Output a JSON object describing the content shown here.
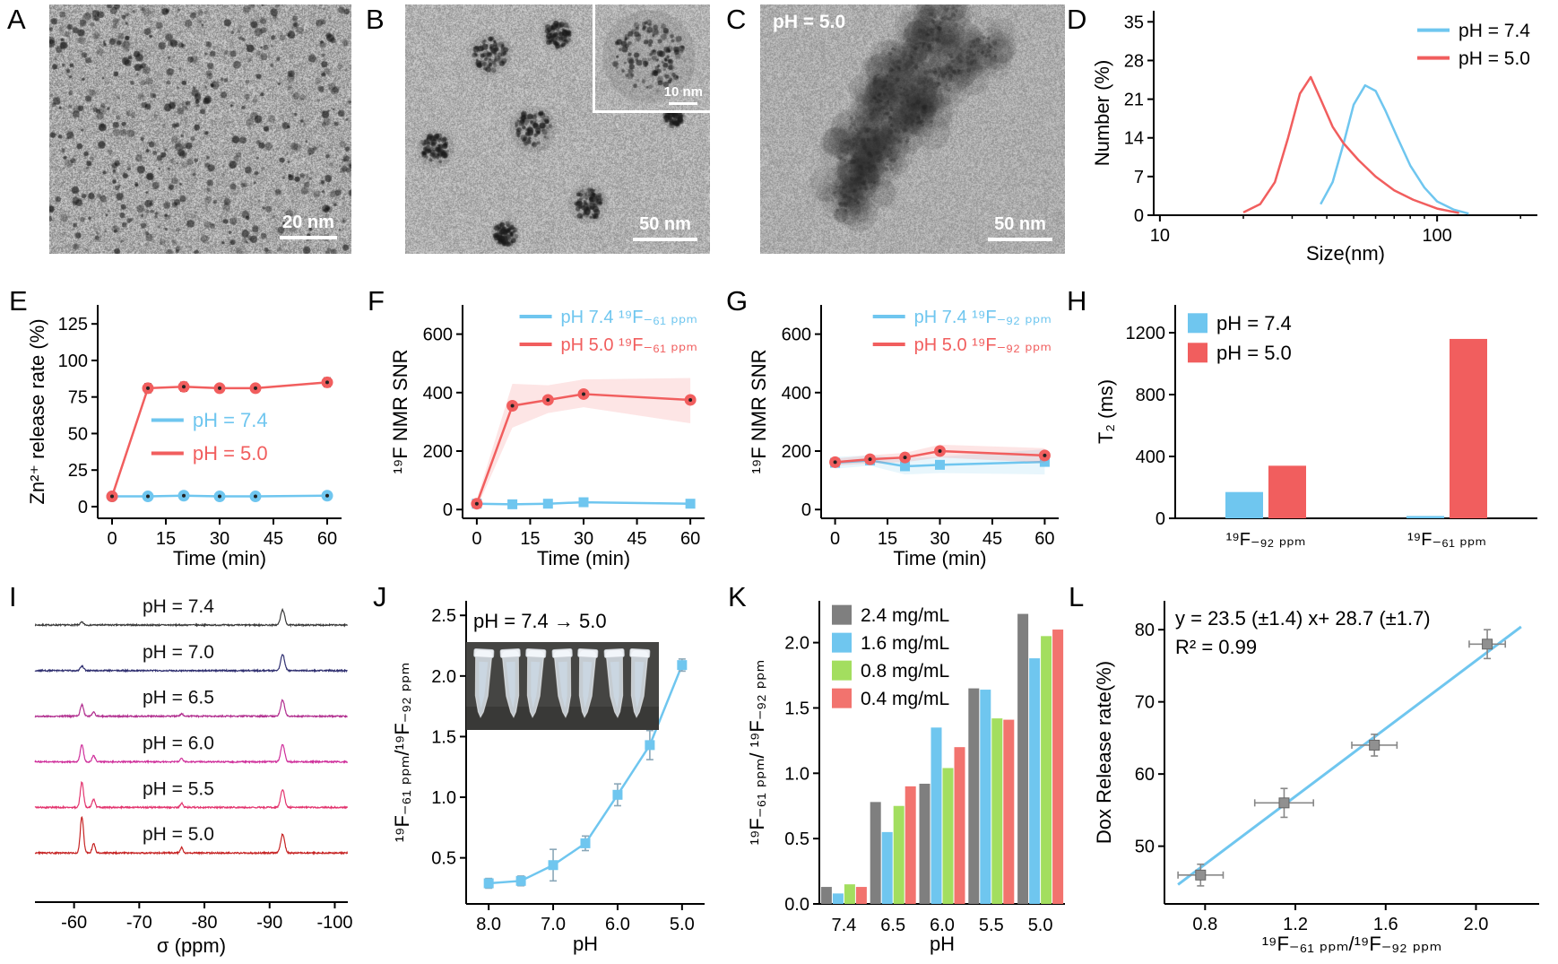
{
  "colors": {
    "blue": "#6FC6EF",
    "red": "#F15E5E",
    "gray": "#7F7F7F",
    "green": "#A3DE5F",
    "bar_red": "#F2736E"
  },
  "panels": {
    "A": {
      "label": "A",
      "scale_bar": "20 nm"
    },
    "B": {
      "label": "B",
      "scale_bar": "50 nm",
      "inset_scale_bar": "10 nm"
    },
    "C": {
      "label": "C",
      "annotation": "pH = 5.0",
      "scale_bar": "50 nm"
    },
    "D": {
      "label": "D"
    },
    "E": {
      "label": "E"
    },
    "F": {
      "label": "F"
    },
    "G": {
      "label": "G"
    },
    "H": {
      "label": "H"
    },
    "I": {
      "label": "I"
    },
    "J": {
      "label": "J"
    },
    "K": {
      "label": "K"
    },
    "L": {
      "label": "L"
    }
  },
  "chart_data": {
    "D": {
      "type": "line",
      "xlabel": "Size(nm)",
      "ylabel": "Number (%)",
      "xscale": "log",
      "xlim": [
        9.5,
        230
      ],
      "ylim": [
        0,
        37
      ],
      "yticks": [
        0,
        7,
        14,
        21,
        28,
        35
      ],
      "xticks": [
        10,
        100
      ],
      "xtick_labels": [
        "10",
        "100"
      ],
      "xminor": [
        20,
        30,
        40,
        50,
        60,
        70,
        80,
        90,
        200
      ],
      "legend": {
        "anchor": "tr",
        "swatch": "line",
        "fontSize": 21,
        "padT": 8,
        "textColored": false,
        "items": [
          {
            "label": "pH = 7.4",
            "color": "#6FC6EF"
          },
          {
            "label": "pH = 5.0",
            "color": "#F15E5E"
          }
        ]
      },
      "series": [
        {
          "name": "pH = 7.4",
          "color": "#6FC6EF",
          "x": [
            38,
            42,
            46,
            50,
            55,
            60,
            65,
            72,
            80,
            90,
            100,
            115,
            130
          ],
          "y": [
            2,
            6,
            13,
            20,
            23.5,
            22.5,
            19,
            14,
            9,
            5,
            2.5,
            1,
            0.3
          ]
        },
        {
          "name": "pH = 5.0",
          "color": "#F15E5E",
          "x": [
            20,
            23,
            26,
            29,
            32,
            35,
            38,
            42,
            46,
            52,
            60,
            70,
            82,
            100,
            120
          ],
          "y": [
            0.5,
            2,
            6,
            14,
            22,
            25,
            21,
            16,
            13,
            10,
            7,
            4.5,
            2.8,
            1.2,
            0.4
          ]
        }
      ]
    },
    "E": {
      "type": "line",
      "xlabel": "Time (min)",
      "ylabel": "Zn²⁺ release rate (%)",
      "xlim": [
        -4,
        64
      ],
      "ylim": [
        -8,
        138
      ],
      "yticks": [
        0,
        25,
        50,
        75,
        100,
        125
      ],
      "xticks": [
        0,
        15,
        30,
        45,
        60
      ],
      "legend": {
        "anchor": "custom",
        "fx": 0.22,
        "fy": 0.48,
        "swatch": "line",
        "fontSize": 22,
        "dy": 37,
        "textColored": true,
        "items": [
          {
            "label": "pH = 7.4",
            "color": "#6FC6EF"
          },
          {
            "label": "pH = 5.0",
            "color": "#F15E5E"
          }
        ]
      },
      "series": [
        {
          "name": "pH = 7.4",
          "color": "#6FC6EF",
          "marker": "circle",
          "err_color": "#222",
          "x": [
            0,
            10,
            20,
            30,
            40,
            60
          ],
          "y": [
            7,
            7,
            7.5,
            7,
            7,
            7.5
          ],
          "yerr": [
            2,
            2,
            2,
            2,
            2,
            2
          ]
        },
        {
          "name": "pH = 5.0",
          "color": "#F15E5E",
          "marker": "circle",
          "err_color": "#222",
          "x": [
            0,
            10,
            20,
            30,
            40,
            60
          ],
          "y": [
            7,
            81,
            82,
            81,
            81,
            85
          ],
          "yerr": [
            2,
            3,
            3,
            2,
            2,
            3
          ]
        }
      ]
    },
    "F": {
      "type": "line",
      "xlabel": "Time (min)",
      "ylabel": "¹⁹F NMR SNR",
      "xlim": [
        -4,
        64
      ],
      "ylim": [
        -30,
        700
      ],
      "yticks": [
        0,
        200,
        400,
        600
      ],
      "xticks": [
        0,
        15,
        30,
        45,
        60
      ],
      "legend": {
        "anchor": "tr",
        "swatch": "line",
        "fontSize": 20,
        "padT": 0,
        "textColored": true,
        "items": [
          {
            "label": "pH 7.4 ¹⁹F₋₆₁ ₚₚₘ",
            "color": "#6FC6EF"
          },
          {
            "label": "pH 5.0 ¹⁹F₋₆₁ ₚₚₘ",
            "color": "#F15E5E"
          }
        ]
      },
      "series": [
        {
          "name": "pH 7.4",
          "color": "#6FC6EF",
          "marker": "square",
          "x": [
            0,
            10,
            20,
            30,
            60
          ],
          "y": [
            20,
            18,
            20,
            25,
            20
          ]
        },
        {
          "name": "pH 5.0",
          "color": "#F15E5E",
          "marker": "circle",
          "x": [
            0,
            10,
            20,
            30,
            60
          ],
          "y": [
            20,
            355,
            375,
            395,
            375
          ],
          "band_lo": [
            5,
            280,
            330,
            350,
            295
          ],
          "band_hi": [
            35,
            430,
            425,
            445,
            450
          ]
        }
      ]
    },
    "G": {
      "type": "line",
      "xlabel": "Time (min)",
      "ylabel": "¹⁹F NMR SNR",
      "xlim": [
        -4,
        64
      ],
      "ylim": [
        -30,
        700
      ],
      "yticks": [
        0,
        200,
        400,
        600
      ],
      "xticks": [
        0,
        15,
        30,
        45,
        60
      ],
      "legend": {
        "anchor": "tr",
        "swatch": "line",
        "fontSize": 20,
        "padT": 0,
        "textColored": true,
        "items": [
          {
            "label": "pH 7.4 ¹⁹F₋₉₂ ₚₚₘ",
            "color": "#6FC6EF"
          },
          {
            "label": "pH 5.0 ¹⁹F₋₉₂ ₚₚₘ",
            "color": "#F15E5E"
          }
        ]
      },
      "series": [
        {
          "name": "pH 7.4",
          "color": "#6FC6EF",
          "marker": "square",
          "x": [
            0,
            10,
            20,
            30,
            60
          ],
          "y": [
            160,
            168,
            148,
            153,
            163
          ],
          "band_lo": [
            140,
            150,
            120,
            125,
            120
          ],
          "band_hi": [
            180,
            186,
            176,
            181,
            206
          ]
        },
        {
          "name": "pH 5.0",
          "color": "#F15E5E",
          "marker": "circle",
          "x": [
            0,
            10,
            20,
            30,
            60
          ],
          "y": [
            162,
            172,
            178,
            200,
            185
          ],
          "band_lo": [
            150,
            158,
            162,
            178,
            160
          ],
          "band_hi": [
            174,
            186,
            194,
            222,
            210
          ]
        }
      ]
    },
    "H": {
      "type": "bar",
      "ylabel": "T₂ (ms)",
      "categories": [
        "¹⁹F₋₉₂ ₚₚₘ",
        "¹⁹F₋₆₁ ₚₚₘ"
      ],
      "ylim": [
        0,
        1380
      ],
      "yticks": [
        0,
        400,
        800,
        1200
      ],
      "legend": {
        "anchor": "tl",
        "swatch": "box",
        "fontSize": 22,
        "padL": 14,
        "padT": 6,
        "dy": 33,
        "textColored": false,
        "items": [
          {
            "label": "pH = 7.4",
            "color": "#6FC6EF"
          },
          {
            "label": "pH = 5.0",
            "color": "#F15E5E"
          }
        ]
      },
      "series": [
        {
          "name": "pH = 7.4",
          "color": "#6FC6EF",
          "values": [
            170,
            15
          ]
        },
        {
          "name": "pH = 5.0",
          "color": "#F15E5E",
          "values": [
            340,
            1160
          ]
        }
      ]
    },
    "I": {
      "type": "spectra",
      "xlabel": "σ (ppm)",
      "xlim": [
        -54,
        -102
      ],
      "xticks": [
        -60,
        -70,
        -80,
        -90,
        -100
      ],
      "xtick_labels": [
        "-60",
        "-70",
        "-80",
        "-90",
        "-100"
      ],
      "traces": [
        {
          "label": "pH = 7.4",
          "color": "#3a3a3a",
          "peaks": [
            [
              -61.2,
              3,
              0.25
            ],
            [
              -92,
              17,
              0.3
            ]
          ]
        },
        {
          "label": "pH = 7.0",
          "color": "#2f2f70",
          "peaks": [
            [
              -61.2,
              5,
              0.25
            ],
            [
              -92,
              18,
              0.3
            ]
          ]
        },
        {
          "label": "pH = 6.5",
          "color": "#b23090",
          "peaks": [
            [
              -61.2,
              13,
              0.25
            ],
            [
              -63,
              5,
              0.22
            ],
            [
              -76.5,
              3,
              0.2
            ],
            [
              -92,
              18,
              0.3
            ]
          ]
        },
        {
          "label": "pH = 6.0",
          "color": "#cf2f9b",
          "peaks": [
            [
              -61.2,
              19,
              0.25
            ],
            [
              -63,
              7,
              0.22
            ],
            [
              -76.5,
              4,
              0.2
            ],
            [
              -92,
              19,
              0.3
            ]
          ]
        },
        {
          "label": "pH = 5.5",
          "color": "#e3356f",
          "peaks": [
            [
              -61.2,
              28,
              0.25
            ],
            [
              -63,
              9,
              0.22
            ],
            [
              -76.5,
              5,
              0.2
            ],
            [
              -92,
              20,
              0.3
            ]
          ]
        },
        {
          "label": "pH = 5.0",
          "color": "#c62323",
          "peaks": [
            [
              -61.2,
              40,
              0.25
            ],
            [
              -63,
              11,
              0.22
            ],
            [
              -76.5,
              6,
              0.2
            ],
            [
              -92,
              21,
              0.3
            ]
          ]
        }
      ]
    },
    "J": {
      "type": "line",
      "xlabel": "pH",
      "ylabel": "¹⁹F₋₆₁ ₚₚₘ/¹⁹F₋₉₂ ₚₚₘ",
      "annotation": "pH = 7.4 → 5.0",
      "xlim": [
        8.35,
        4.65
      ],
      "ylim": [
        0.12,
        2.62
      ],
      "yticks": [
        0.5,
        1.0,
        1.5,
        2.0,
        2.5
      ],
      "ytick_labels": [
        "0.5",
        "1.0",
        "1.5",
        "2.0",
        "2.5"
      ],
      "xticks": [
        8.0,
        7.0,
        6.0,
        5.0
      ],
      "xtick_labels": [
        "8.0",
        "7.0",
        "6.0",
        "5.0"
      ],
      "series": [
        {
          "name": "ratio",
          "color": "#6FC6EF",
          "marker": "square",
          "err_color": "#8aa7b8",
          "x": [
            8.0,
            7.5,
            7.0,
            6.5,
            6.0,
            5.5,
            5.0
          ],
          "y": [
            0.29,
            0.31,
            0.44,
            0.62,
            1.02,
            1.43,
            2.09
          ],
          "yerr": [
            0.04,
            0.04,
            0.13,
            0.06,
            0.09,
            0.12,
            0.05
          ]
        }
      ]
    },
    "K": {
      "type": "grouped-bar",
      "xlabel": "pH",
      "ylabel": "¹⁹F₋₆₁ ₚₚₘ/ ¹⁹F₋₉₂ ₚₚₘ",
      "categories": [
        "7.4",
        "6.5",
        "6.0",
        "5.5",
        "5.0"
      ],
      "ylim": [
        0,
        2.32
      ],
      "yticks": [
        0.0,
        0.5,
        1.0,
        1.5,
        2.0
      ],
      "ytick_labels": [
        "0.0",
        "0.5",
        "1.0",
        "1.5",
        "2.0"
      ],
      "legend": {
        "anchor": "tl",
        "swatch": "box",
        "fontSize": 21,
        "padL": 14,
        "padT": 2,
        "dy": 31,
        "textColored": false,
        "items": [
          {
            "label": "2.4 mg/mL",
            "color": "#7F7F7F"
          },
          {
            "label": "1.6 mg/mL",
            "color": "#6FC6EF"
          },
          {
            "label": "0.8 mg/mL",
            "color": "#A3DE5F"
          },
          {
            "label": "0.4 mg/mL",
            "color": "#F2736E"
          }
        ]
      },
      "series": [
        {
          "name": "2.4 mg/mL",
          "color": "#7F7F7F",
          "values": [
            0.13,
            0.78,
            0.92,
            1.65,
            2.22
          ]
        },
        {
          "name": "1.6 mg/mL",
          "color": "#6FC6EF",
          "values": [
            0.08,
            0.55,
            1.35,
            1.64,
            1.88
          ]
        },
        {
          "name": "0.8 mg/mL",
          "color": "#A3DE5F",
          "values": [
            0.15,
            0.75,
            1.04,
            1.42,
            2.05
          ]
        },
        {
          "name": "0.4 mg/mL",
          "color": "#F2736E",
          "values": [
            0.13,
            0.9,
            1.2,
            1.41,
            2.1
          ]
        }
      ]
    },
    "L": {
      "type": "scatter-fit",
      "xlabel": "¹⁹F₋₆₁ ₚₚₘ/¹⁹F₋₉₂ ₚₚₘ",
      "ylabel": "Dox Release rate(%)",
      "annotation_line1": "y = 23.5 (±1.4) x+ 28.7 (±1.7)",
      "annotation_line2": "R² = 0.99",
      "xlim": [
        0.62,
        2.28
      ],
      "ylim": [
        42,
        84
      ],
      "xticks": [
        0.8,
        1.2,
        1.6,
        2.0
      ],
      "xtick_labels": [
        "0.8",
        "1.2",
        "1.6",
        "2.0"
      ],
      "yticks": [
        50,
        60,
        70,
        80
      ],
      "fit": {
        "slope": 23.5,
        "intercept": 28.7,
        "color": "#6FC6EF",
        "x_start": 0.68,
        "x_end": 2.2
      },
      "points": {
        "color": "#909090",
        "err_color": "#888",
        "x": [
          0.78,
          1.15,
          1.55,
          2.05
        ],
        "y": [
          46,
          56,
          64,
          78
        ],
        "xerr": [
          0.1,
          0.13,
          0.1,
          0.08
        ],
        "yerr": [
          1.5,
          2,
          1.5,
          2
        ]
      }
    }
  }
}
